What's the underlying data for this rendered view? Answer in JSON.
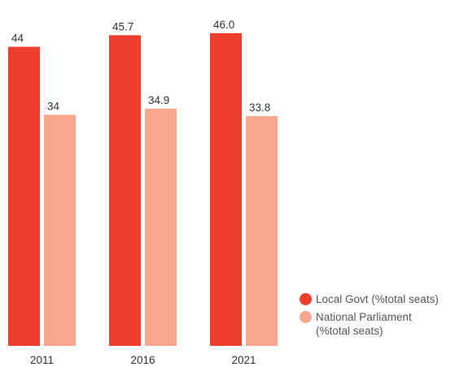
{
  "chart_data": {
    "type": "bar",
    "categories": [
      "2011",
      "2016",
      "2021"
    ],
    "series": [
      {
        "name": "Local Govt (%total seats)",
        "values": [
          44,
          45.7,
          46.0
        ],
        "labels": [
          "44",
          "45.7",
          "46.0"
        ],
        "color": "#ee3e2c"
      },
      {
        "name": "National Parliament (%total seats)",
        "values": [
          34,
          34.9,
          33.8
        ],
        "labels": [
          "34",
          "34.9",
          "33.8"
        ],
        "color": "#f8a68c"
      }
    ],
    "title": "",
    "xlabel": "",
    "ylabel": "",
    "ylim": [
      0,
      46.7
    ],
    "grid": false,
    "legend_position": "bottom-right"
  },
  "legend": {
    "items": [
      {
        "label": "Local Govt (%total seats)",
        "color": "#ee3e2c"
      },
      {
        "label": "National Parliament\n(%total seats)",
        "color": "#f8a68c"
      }
    ]
  }
}
